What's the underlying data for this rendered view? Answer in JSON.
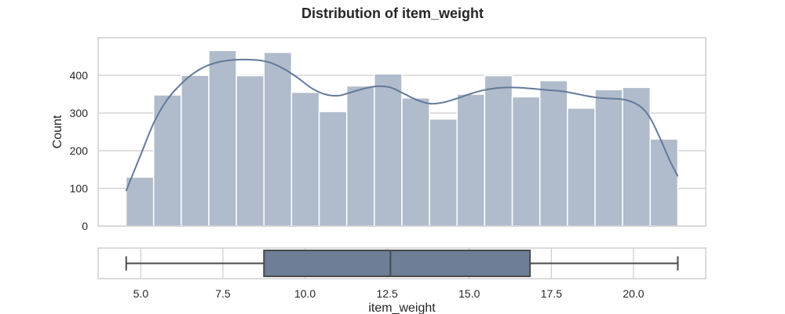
{
  "chart_data": {
    "type": "histogram",
    "title": "Distribution of item_weight",
    "colors": {
      "bar": "#b0bbcb",
      "kde": "#637a9a",
      "box": "#6e7e97",
      "grid": "#cccccc",
      "frame": "#cfcfcf",
      "whisker": "#4a4a4a"
    },
    "histogram": {
      "ylabel": "Count",
      "ylim": [
        0,
        500
      ],
      "yticks": [
        0,
        100,
        200,
        300,
        400
      ],
      "grid": true,
      "bins": [
        {
          "x0": 4.55,
          "x1": 5.39,
          "count": 130
        },
        {
          "x0": 5.39,
          "x1": 6.23,
          "count": 348
        },
        {
          "x0": 6.23,
          "x1": 7.07,
          "count": 400
        },
        {
          "x0": 7.07,
          "x1": 7.91,
          "count": 466
        },
        {
          "x0": 7.91,
          "x1": 8.75,
          "count": 399
        },
        {
          "x0": 8.75,
          "x1": 9.59,
          "count": 461
        },
        {
          "x0": 9.59,
          "x1": 10.43,
          "count": 355
        },
        {
          "x0": 10.43,
          "x1": 11.27,
          "count": 304
        },
        {
          "x0": 11.27,
          "x1": 12.11,
          "count": 372
        },
        {
          "x0": 12.11,
          "x1": 12.95,
          "count": 404
        },
        {
          "x0": 12.95,
          "x1": 13.79,
          "count": 340
        },
        {
          "x0": 13.79,
          "x1": 14.63,
          "count": 284
        },
        {
          "x0": 14.63,
          "x1": 15.47,
          "count": 350
        },
        {
          "x0": 15.47,
          "x1": 16.31,
          "count": 399
        },
        {
          "x0": 16.31,
          "x1": 17.15,
          "count": 343
        },
        {
          "x0": 17.15,
          "x1": 17.99,
          "count": 386
        },
        {
          "x0": 17.99,
          "x1": 18.83,
          "count": 313
        },
        {
          "x0": 18.83,
          "x1": 19.67,
          "count": 362
        },
        {
          "x0": 19.67,
          "x1": 20.51,
          "count": 368
        },
        {
          "x0": 20.51,
          "x1": 21.35,
          "count": 231
        }
      ],
      "kde": {
        "x": [
          4.55,
          5.0,
          5.4,
          5.8,
          6.2,
          6.6,
          7.0,
          7.4,
          7.8,
          8.2,
          8.6,
          9.0,
          9.4,
          9.8,
          10.2,
          10.6,
          11.0,
          11.4,
          11.8,
          12.2,
          12.6,
          13.0,
          13.4,
          13.8,
          14.2,
          14.6,
          15.0,
          15.4,
          15.8,
          16.2,
          16.6,
          17.0,
          17.4,
          17.8,
          18.2,
          18.6,
          19.0,
          19.4,
          19.8,
          20.2,
          20.5,
          20.8,
          21.1,
          21.35
        ],
        "y": [
          93,
          190,
          275,
          335,
          375,
          405,
          425,
          436,
          441,
          442,
          440,
          432,
          415,
          392,
          366,
          350,
          346,
          355,
          365,
          371,
          368,
          352,
          335,
          325,
          328,
          338,
          350,
          360,
          366,
          368,
          367,
          364,
          361,
          358,
          352,
          345,
          340,
          338,
          334,
          318,
          288,
          235,
          175,
          132
        ]
      }
    },
    "boxplot": {
      "xlabel": "item_weight",
      "xlim": [
        3.7,
        22.2
      ],
      "xticks": [
        "5.0",
        "7.5",
        "10.0",
        "12.5",
        "15.0",
        "17.5",
        "20.0"
      ],
      "min": 4.555,
      "q1": 8.75,
      "median": 12.6,
      "q3": 16.85,
      "max": 21.35
    }
  }
}
